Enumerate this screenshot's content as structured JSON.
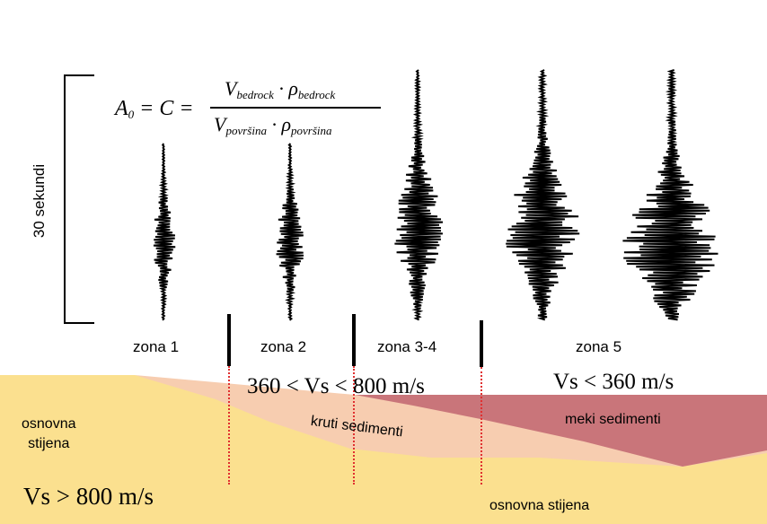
{
  "axis_label": "30 sekundi",
  "formula": {
    "lhs_html": "A<sub>0</sub> = C =",
    "numerator_html": "V<sub>bedrock</sub> · ρ<sub>bedrock</sub>",
    "denominator_html": "V<sub>površina</sub> · ρ<sub>površina</sub>"
  },
  "zones": [
    "zona 1",
    "zona 2",
    "zona 3-4",
    "zona 5"
  ],
  "labels": {
    "bedrock_left": "osnovna\nstijena",
    "bedrock_bottom": "osnovna stijena",
    "stiff_sediments": "kruti sedimenti",
    "soft_sediments": "meki sedimenti",
    "vs_high": "Vs > 800 m/s",
    "vs_mid": "360 < Vs < 800 m/s",
    "vs_low": "Vs < 360 m/s"
  },
  "colors": {
    "bedrock": "#fbe08f",
    "stiff_sediments": "#f7cdb0",
    "soft_sediments": "#c9757a",
    "boundary_dots": "#e03030",
    "trace": "#000000"
  },
  "seismograms": [
    {
      "zone": "zona 1",
      "relative_amplitude": 0.35
    },
    {
      "zone": "zona 2",
      "relative_amplitude": 0.45
    },
    {
      "zone": "zona 3-4",
      "relative_amplitude": 0.75
    },
    {
      "zone": "zona 5 (a)",
      "relative_amplitude": 1.15
    },
    {
      "zone": "zona 5 (b)",
      "relative_amplitude": 1.5
    }
  ]
}
